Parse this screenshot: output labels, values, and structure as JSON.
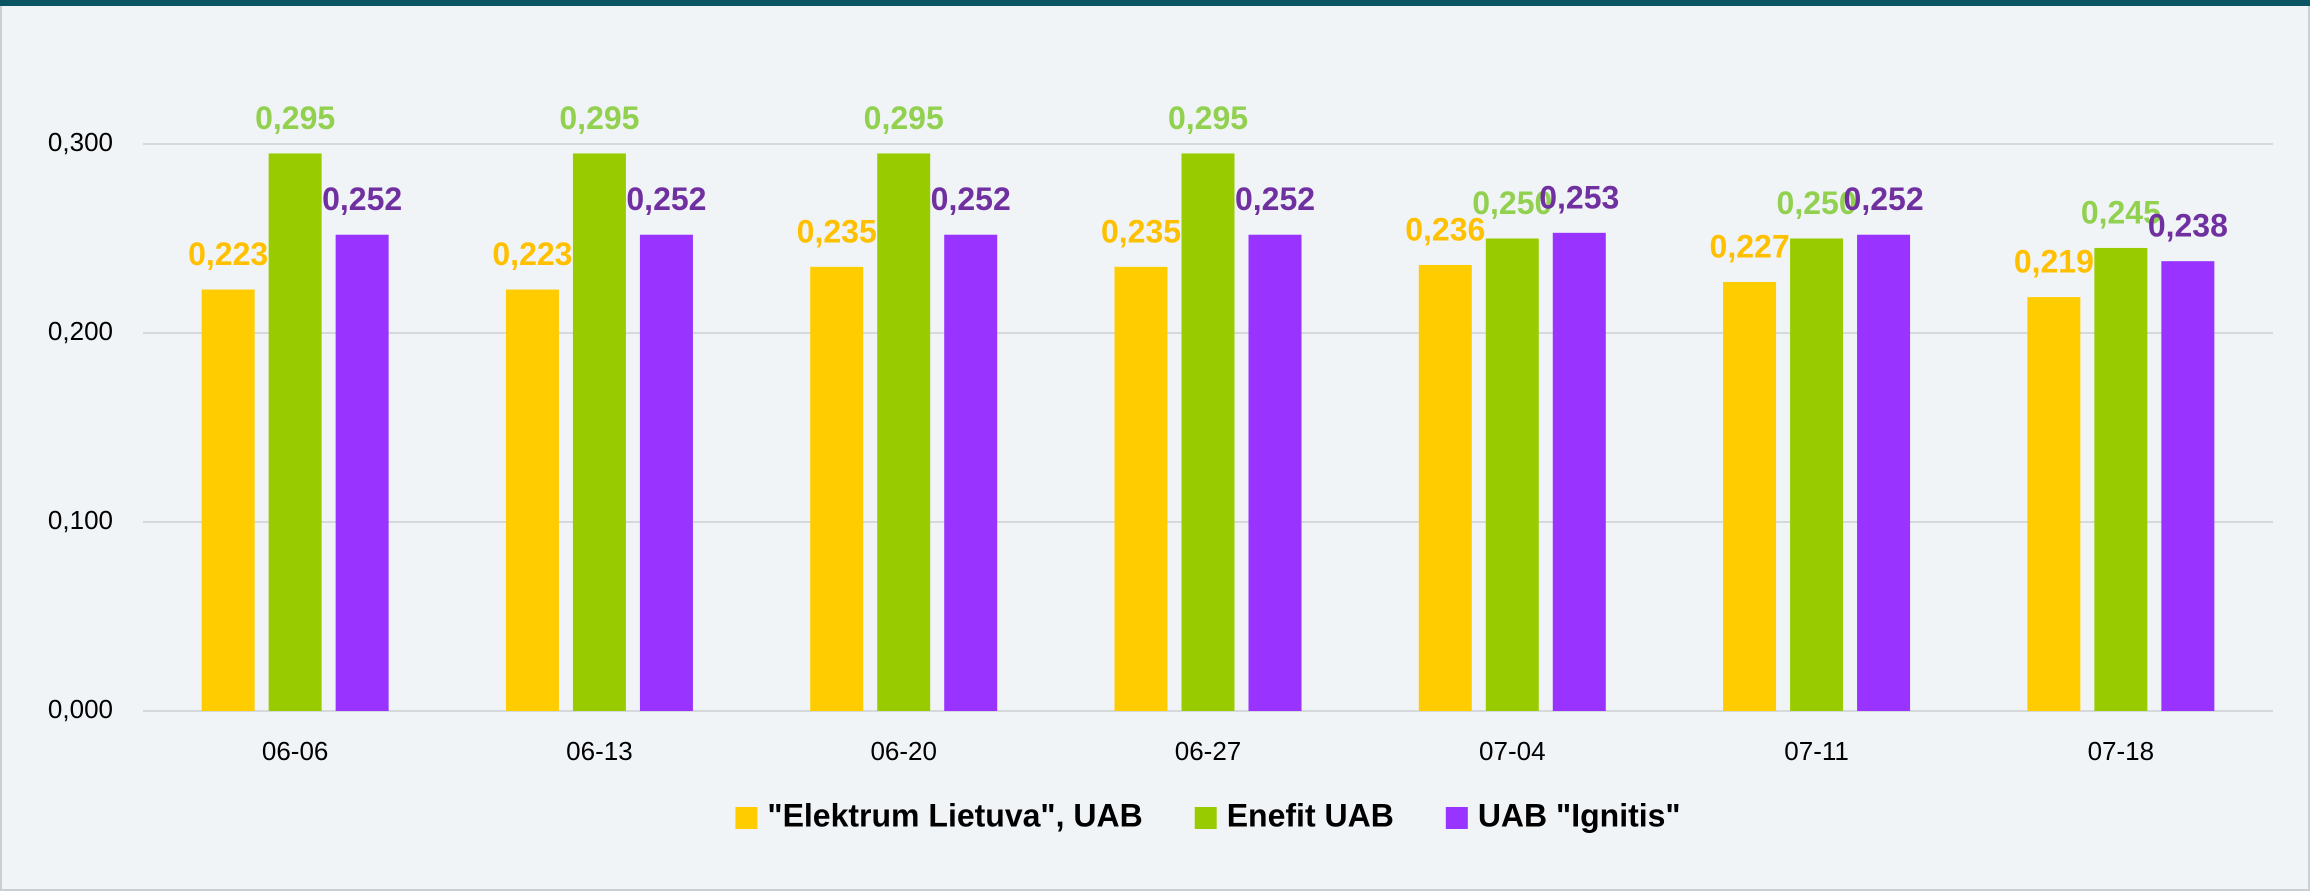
{
  "chart_data": {
    "type": "bar",
    "categories": [
      "06-06",
      "06-13",
      "06-20",
      "06-27",
      "07-04",
      "07-11",
      "07-18"
    ],
    "series": [
      {
        "name": "\"Elektrum Lietuva\", UAB",
        "color": "#ffcc00",
        "label_color": "#ffc000",
        "values": [
          0.223,
          0.223,
          0.235,
          0.235,
          0.236,
          0.227,
          0.219
        ],
        "value_labels": [
          "0,223",
          "0,223",
          "0,235",
          "0,235",
          "0,236",
          "0,227",
          "0,219"
        ]
      },
      {
        "name": "Enefit UAB",
        "color": "#99cc00",
        "label_color": "#92d050",
        "values": [
          0.295,
          0.295,
          0.295,
          0.295,
          0.25,
          0.25,
          0.245
        ],
        "value_labels": [
          "0,295",
          "0,295",
          "0,295",
          "0,295",
          "0,250",
          "0,250",
          "0,245"
        ]
      },
      {
        "name": "UAB \"Ignitis\"",
        "color": "#9933ff",
        "label_color": "#7030a0",
        "values": [
          0.252,
          0.252,
          0.252,
          0.252,
          0.253,
          0.252,
          0.238
        ],
        "value_labels": [
          "0,252",
          "0,252",
          "0,252",
          "0,252",
          "0,253",
          "0,252",
          "0,238"
        ]
      }
    ],
    "ylim": [
      0,
      0.3
    ],
    "yticks": [
      {
        "value": 0,
        "label": "0,000"
      },
      {
        "value": 0.1,
        "label": "0,100"
      },
      {
        "value": 0.2,
        "label": "0,200"
      },
      {
        "value": 0.3,
        "label": "0,300"
      }
    ],
    "grid": true,
    "legend": "bottom"
  }
}
